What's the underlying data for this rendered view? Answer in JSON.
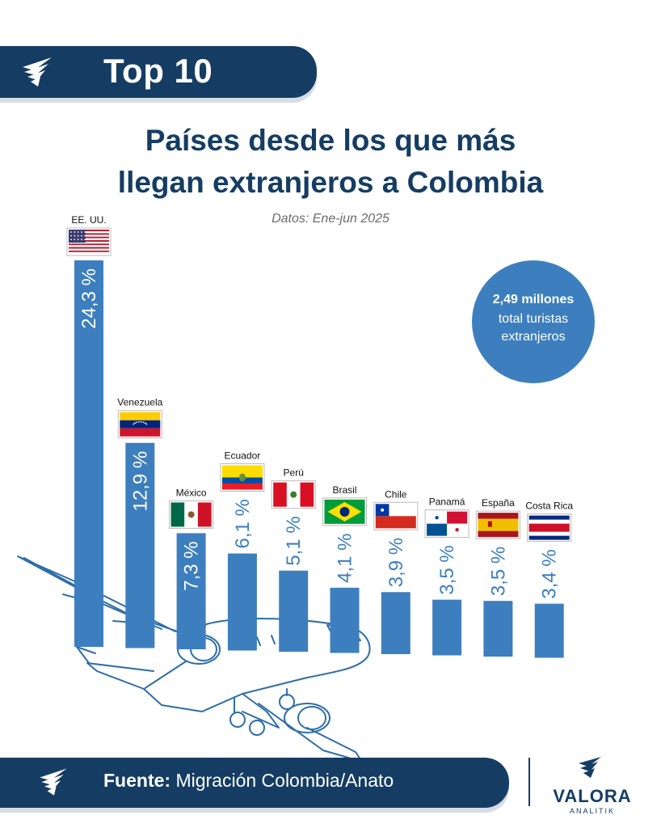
{
  "header": {
    "title": "Top 10"
  },
  "headline": {
    "line1": "Países desde los que más",
    "line2": "llegan extranjeros a Colombia",
    "subtitle": "Datos: Ene-jun 2025"
  },
  "total": {
    "value": "2,49 millones",
    "line1": "total turistas",
    "line2": "extranjeros"
  },
  "chart_data": {
    "type": "bar",
    "unit": "%",
    "categories": [
      "EE. UU.",
      "Venezuela",
      "México",
      "Ecuador",
      "Perú",
      "Brasil",
      "Chile",
      "Panamá",
      "España",
      "Costa Rica"
    ],
    "values": [
      24.3,
      12.9,
      7.3,
      6.1,
      5.1,
      4.1,
      3.9,
      3.5,
      3.5,
      3.4
    ],
    "value_labels": [
      "24,3 %",
      "12,9 %",
      "7,3 %",
      "6,1 %",
      "5,1 %",
      "4,1 %",
      "3,9 %",
      "3,5 %",
      "3,5 %",
      "3,4 %"
    ],
    "flags": [
      "us-flag",
      "venezuela-flag",
      "mexico-flag",
      "ecuador-flag",
      "peru-flag",
      "brazil-flag",
      "chile-flag",
      "panama-flag",
      "spain-flag",
      "costa-rica-flag"
    ],
    "bar_color": "#3d7fbe",
    "title": "Países desde los que más llegan extranjeros a Colombia",
    "xlabel": "",
    "ylabel": ""
  },
  "footer": {
    "source_label": "Fuente:",
    "source_text": " Migración Colombia/Anato",
    "brand": "VALORA",
    "brand_sub": "ANALITIK"
  },
  "colors": {
    "navy": "#153d63",
    "blue": "#3d7fbe"
  }
}
